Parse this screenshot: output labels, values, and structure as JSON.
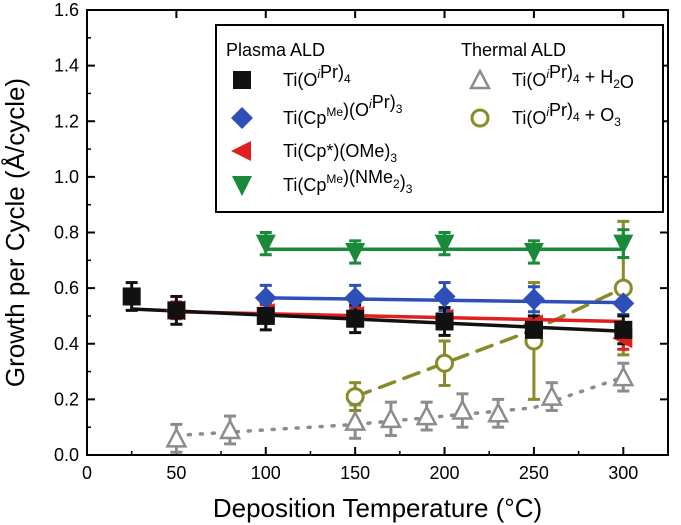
{
  "chart_data": {
    "type": "scatter",
    "xlabel": "Deposition Temperature (°C)",
    "ylabel": "Growth per Cycle (Å/cycle)",
    "xlim": [
      0,
      325
    ],
    "ylim": [
      0,
      1.6
    ],
    "xticks": [
      "0",
      "50",
      "100",
      "150",
      "200",
      "250",
      "300"
    ],
    "yticks": [
      "0.0",
      "0.2",
      "0.4",
      "0.6",
      "0.8",
      "1.0",
      "1.2",
      "1.4",
      "1.6"
    ],
    "grid": false,
    "legend_position": "top-right",
    "legend_groups": [
      "Plasma ALD",
      "Thermal ALD"
    ],
    "series": [
      {
        "name": "Ti(OiPr)4",
        "legend_parts": [
          [
            "Ti(O",
            "n"
          ],
          [
            "i",
            "sup"
          ],
          [
            "Pr)",
            "n"
          ],
          [
            "4",
            "sub"
          ]
        ],
        "group": "Plasma ALD",
        "marker": "square",
        "color": "#111111",
        "x": [
          25,
          50,
          100,
          150,
          200,
          250,
          300
        ],
        "y": [
          0.57,
          0.52,
          0.5,
          0.49,
          0.48,
          0.45,
          0.45
        ],
        "err": [
          0.05,
          0.05,
          0.05,
          0.05,
          0.05,
          0.05,
          0.05
        ],
        "fit": [
          [
            25,
            0.525
          ],
          [
            300,
            0.445
          ]
        ],
        "fit_style": "solid"
      },
      {
        "name": "Ti(CpMe)(OiPr)3",
        "legend_parts": [
          [
            "Ti(Cp",
            "n"
          ],
          [
            "Me",
            "sup"
          ],
          [
            ")(O",
            "n"
          ],
          [
            "i",
            "sup"
          ],
          [
            "Pr)",
            "n"
          ],
          [
            "3",
            "sub"
          ]
        ],
        "group": "Plasma ALD",
        "marker": "diamond",
        "color": "#2e4fb8",
        "x": [
          100,
          150,
          200,
          250,
          300
        ],
        "y": [
          0.565,
          0.565,
          0.57,
          0.56,
          0.545
        ],
        "err": [
          0.045,
          0.045,
          0.05,
          0.045,
          0.04
        ],
        "fit": [
          [
            100,
            0.565
          ],
          [
            300,
            0.548
          ]
        ],
        "fit_style": "solid"
      },
      {
        "name": "Ti(Cp*)(OMe)3",
        "legend_parts": [
          [
            "Ti(Cp*)(OMe)",
            "n"
          ],
          [
            "3",
            "sub"
          ]
        ],
        "group": "Plasma ALD",
        "marker": "triangle-left",
        "color": "#e21e1e",
        "x": [
          50,
          100,
          150,
          200,
          250,
          300
        ],
        "y": [
          0.52,
          0.51,
          0.5,
          0.49,
          0.47,
          0.42
        ],
        "err": [
          0.03,
          0.03,
          0.03,
          0.03,
          0.03,
          0.04
        ],
        "fit": [
          [
            50,
            0.515
          ],
          [
            300,
            0.48
          ]
        ],
        "fit_style": "solid"
      },
      {
        "name": "Ti(CpMe)(NMe2)3",
        "legend_parts": [
          [
            "Ti(Cp",
            "n"
          ],
          [
            "Me",
            "sup"
          ],
          [
            ")(NMe",
            "n"
          ],
          [
            "2",
            "sub"
          ],
          [
            ")",
            "n"
          ],
          [
            "3",
            "sub"
          ]
        ],
        "group": "Plasma ALD",
        "marker": "triangle-down",
        "color": "#1a8a3a",
        "x": [
          100,
          150,
          200,
          250,
          300
        ],
        "y": [
          0.76,
          0.73,
          0.76,
          0.73,
          0.76
        ],
        "err": [
          0.04,
          0.04,
          0.04,
          0.04,
          0.05
        ],
        "fit": [
          [
            100,
            0.74
          ],
          [
            300,
            0.74
          ]
        ],
        "fit_style": "solid"
      },
      {
        "name": "Ti(OiPr)4 + H2O",
        "legend_parts": [
          [
            "Ti(O",
            "n"
          ],
          [
            "i",
            "sup"
          ],
          [
            "Pr)",
            "n"
          ],
          [
            "4",
            "sub"
          ],
          [
            " + H",
            "n"
          ],
          [
            "2",
            "sub"
          ],
          [
            "O",
            "n"
          ]
        ],
        "group": "Thermal ALD",
        "marker": "triangle-up-open",
        "color": "#8c8c8c",
        "x": [
          50,
          80,
          150,
          170,
          190,
          210,
          230,
          260,
          300
        ],
        "y": [
          0.06,
          0.09,
          0.12,
          0.13,
          0.14,
          0.16,
          0.15,
          0.21,
          0.28
        ],
        "err": [
          0.05,
          0.05,
          0.06,
          0.06,
          0.05,
          0.06,
          0.05,
          0.05,
          0.05
        ],
        "fit": [
          [
            50,
            0.07
          ],
          [
            150,
            0.11
          ],
          [
            200,
            0.14
          ],
          [
            250,
            0.17
          ],
          [
            300,
            0.28
          ]
        ],
        "fit_style": "dotted"
      },
      {
        "name": "Ti(OiPr)4 + O3",
        "legend_parts": [
          [
            "Ti(O",
            "n"
          ],
          [
            "i",
            "sup"
          ],
          [
            "Pr)",
            "n"
          ],
          [
            "4",
            "sub"
          ],
          [
            " + O",
            "n"
          ],
          [
            "3",
            "sub"
          ]
        ],
        "group": "Thermal ALD",
        "marker": "circle-open",
        "color": "#8a8a2a",
        "x": [
          150,
          200,
          250,
          300
        ],
        "y": [
          0.21,
          0.33,
          0.41,
          0.6
        ],
        "err": [
          0.05,
          0.08,
          0.21,
          0.24
        ],
        "fit": [
          [
            150,
            0.21
          ],
          [
            200,
            0.33
          ],
          [
            250,
            0.45
          ],
          [
            300,
            0.6
          ]
        ],
        "fit_style": "dashed"
      }
    ]
  }
}
